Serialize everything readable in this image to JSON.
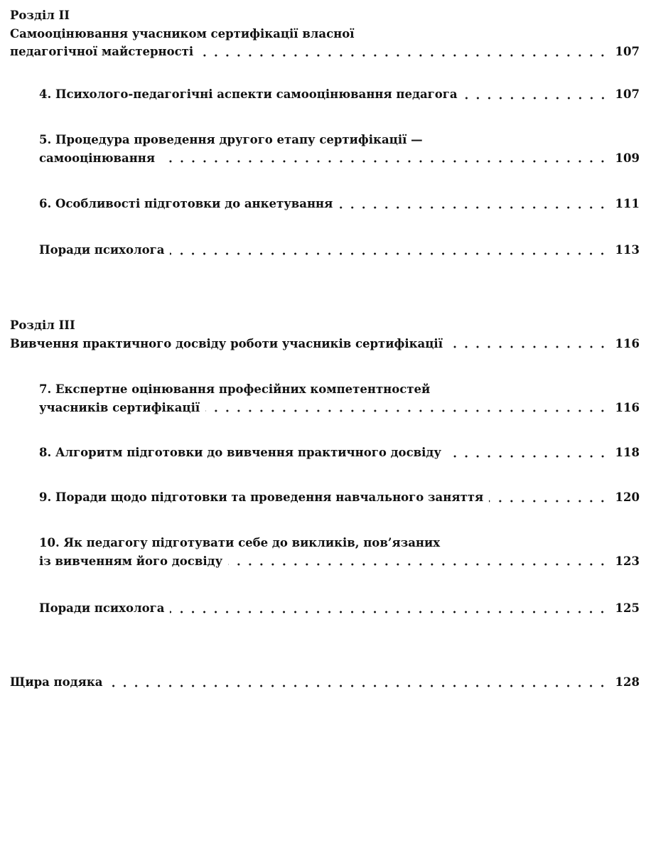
{
  "toc": {
    "section2": {
      "label": "Розділ II",
      "title_line1": "Самооцінювання учасником сертифікації власної",
      "title_line2": "педагогічної майстерності",
      "page": "107"
    },
    "item4": {
      "title": "4. Психолого-педагогічні аспекти самооцінювання педагога",
      "page": "107"
    },
    "item5": {
      "title_line1": "5. Процедура проведення другого етапу сертифікації —",
      "title_line2": "самооцінювання",
      "page": "109"
    },
    "item6": {
      "title": "6. Особливості підготовки до анкетування",
      "page": "111"
    },
    "tips1": {
      "title": "Поради психолога",
      "page": "113"
    },
    "section3": {
      "label": "Розділ III",
      "title": "Вивчення практичного досвіду роботи учасників сертифікації",
      "page": "116"
    },
    "item7": {
      "title_line1": "7. Експертне оцінювання професійних компетентностей",
      "title_line2": "учасників сертифікації",
      "page": "116"
    },
    "item8": {
      "title": "8. Алгоритм підготовки до вивчення практичного досвіду",
      "page": "118"
    },
    "item9": {
      "title": "9. Поради щодо підготовки та проведення навчального заняття",
      "page": "120"
    },
    "item10": {
      "title_line1": "10. Як педагогу підготувати себе до викликів, пов’язаних",
      "title_line2": "із вивченням його досвіду",
      "page": "123"
    },
    "tips2": {
      "title": "Поради психолога",
      "page": "125"
    },
    "thanks": {
      "title": "Щира подяка",
      "page": "128"
    }
  }
}
